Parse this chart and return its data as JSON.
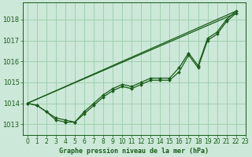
{
  "title": "Graphe pression niveau de la mer (hPa)",
  "bg_color": "#cce8d8",
  "grid_color": "#99ccaa",
  "line_color": "#1a5c1a",
  "xlim": [
    -0.5,
    23
  ],
  "ylim": [
    1012.5,
    1018.8
  ],
  "xticks": [
    0,
    1,
    2,
    3,
    4,
    5,
    6,
    7,
    8,
    9,
    10,
    11,
    12,
    13,
    14,
    15,
    16,
    17,
    18,
    19,
    20,
    21,
    22,
    23
  ],
  "yticks": [
    1013,
    1014,
    1015,
    1016,
    1017,
    1018
  ],
  "line_straight_1": [
    [
      0,
      22
    ],
    [
      1014.0,
      1018.3
    ]
  ],
  "line_straight_2": [
    [
      0,
      22
    ],
    [
      1014.0,
      1018.4
    ]
  ],
  "series_with_markers_1": {
    "x": [
      0,
      1,
      2,
      3,
      4,
      5,
      6,
      7,
      8,
      9,
      10,
      11,
      12,
      13,
      14,
      15,
      16,
      17,
      18,
      19,
      20,
      21,
      22
    ],
    "y": [
      1014.0,
      1013.9,
      1013.6,
      1013.2,
      1013.1,
      1013.1,
      1013.5,
      1013.9,
      1014.3,
      1014.6,
      1014.8,
      1014.7,
      1014.9,
      1015.1,
      1015.1,
      1015.1,
      1015.5,
      1016.3,
      1015.7,
      1017.0,
      1017.3,
      1017.9,
      1018.3
    ]
  },
  "series_with_markers_2": {
    "x": [
      0,
      1,
      2,
      3,
      4,
      5,
      6,
      7,
      8,
      9,
      10,
      11,
      12,
      13,
      14,
      15,
      16,
      17,
      18,
      19,
      20,
      21,
      22
    ],
    "y": [
      1014.0,
      1013.9,
      1013.6,
      1013.3,
      1013.2,
      1013.1,
      1013.6,
      1014.0,
      1014.4,
      1014.7,
      1014.9,
      1014.8,
      1015.0,
      1015.2,
      1015.2,
      1015.2,
      1015.7,
      1016.4,
      1015.8,
      1017.1,
      1017.4,
      1018.0,
      1018.4
    ]
  },
  "xlabel_fontsize": 6,
  "tick_fontsize": 5.5
}
